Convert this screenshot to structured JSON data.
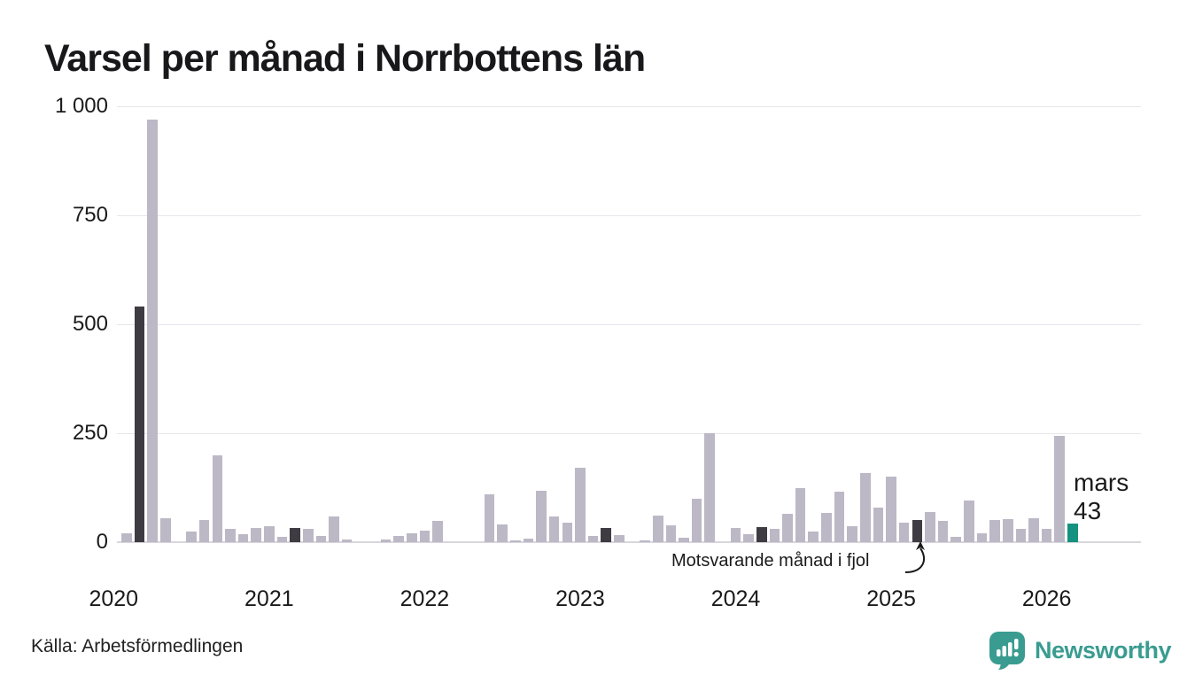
{
  "title": "Varsel per månad i Norrbottens län",
  "source": "Källa: Arbetsförmedlingen",
  "annotation": {
    "text": "Motsvarande månad i fjol"
  },
  "latest_label": {
    "month": "mars",
    "value": "43"
  },
  "brand": {
    "name": "Newsworthy"
  },
  "colors": {
    "bar_normal": "#bcb8c6",
    "bar_reference": "#3e3b42",
    "bar_latest": "#15917f",
    "gridline": "#e7e6ec",
    "baseline": "#d7d6dd",
    "brand_teal": "#3a9c90",
    "text": "#1a1a1a"
  },
  "chart_data": {
    "type": "bar",
    "title": "Varsel per månad i Norrbottens län",
    "xlabel": "",
    "ylabel": "",
    "ylim": [
      0,
      1000
    ],
    "grid": "horizontal",
    "yticks": [
      0,
      250,
      500,
      750,
      1000
    ],
    "ytick_labels": [
      "0",
      "250",
      "500",
      "750",
      "1 000"
    ],
    "year_labels": [
      "2020",
      "2021",
      "2022",
      "2023",
      "2024",
      "2025",
      "2026"
    ],
    "legend": "none",
    "note": "dark bars = same month (mars) in earlier years; teal bar = latest month (mars 2026, value 43)",
    "points": [
      {
        "month": "feb 2020",
        "value": 20,
        "kind": "normal"
      },
      {
        "month": "mar 2020",
        "value": 540,
        "kind": "reference"
      },
      {
        "month": "apr 2020",
        "value": 970,
        "kind": "normal"
      },
      {
        "month": "maj 2020",
        "value": 55,
        "kind": "normal"
      },
      {
        "month": "jun 2020",
        "value": 0,
        "kind": "normal"
      },
      {
        "month": "jul 2020",
        "value": 25,
        "kind": "normal"
      },
      {
        "month": "aug 2020",
        "value": 50,
        "kind": "normal"
      },
      {
        "month": "sep 2020",
        "value": 200,
        "kind": "normal"
      },
      {
        "month": "okt 2020",
        "value": 30,
        "kind": "normal"
      },
      {
        "month": "nov 2020",
        "value": 18,
        "kind": "normal"
      },
      {
        "month": "dec 2020",
        "value": 33,
        "kind": "normal"
      },
      {
        "month": "jan 2021",
        "value": 37,
        "kind": "normal"
      },
      {
        "month": "feb 2021",
        "value": 12,
        "kind": "normal"
      },
      {
        "month": "mar 2021",
        "value": 33,
        "kind": "reference"
      },
      {
        "month": "apr 2021",
        "value": 30,
        "kind": "normal"
      },
      {
        "month": "maj 2021",
        "value": 15,
        "kind": "normal"
      },
      {
        "month": "jun 2021",
        "value": 58,
        "kind": "normal"
      },
      {
        "month": "jul 2021",
        "value": 6,
        "kind": "normal"
      },
      {
        "month": "aug 2021",
        "value": 0,
        "kind": "normal"
      },
      {
        "month": "sep 2021",
        "value": 0,
        "kind": "normal"
      },
      {
        "month": "okt 2021",
        "value": 7,
        "kind": "normal"
      },
      {
        "month": "nov 2021",
        "value": 14,
        "kind": "normal"
      },
      {
        "month": "dec 2021",
        "value": 21,
        "kind": "normal"
      },
      {
        "month": "jan 2022",
        "value": 27,
        "kind": "normal"
      },
      {
        "month": "feb 2022",
        "value": 48,
        "kind": "normal"
      },
      {
        "month": "mar 2022",
        "value": 0,
        "kind": "reference"
      },
      {
        "month": "apr 2022",
        "value": 0,
        "kind": "normal"
      },
      {
        "month": "maj 2022",
        "value": 0,
        "kind": "normal"
      },
      {
        "month": "jun 2022",
        "value": 110,
        "kind": "normal"
      },
      {
        "month": "jul 2022",
        "value": 40,
        "kind": "normal"
      },
      {
        "month": "aug 2022",
        "value": 5,
        "kind": "normal"
      },
      {
        "month": "sep 2022",
        "value": 8,
        "kind": "normal"
      },
      {
        "month": "okt 2022",
        "value": 118,
        "kind": "normal"
      },
      {
        "month": "nov 2022",
        "value": 58,
        "kind": "normal"
      },
      {
        "month": "dec 2022",
        "value": 45,
        "kind": "normal"
      },
      {
        "month": "jan 2023",
        "value": 170,
        "kind": "normal"
      },
      {
        "month": "feb 2023",
        "value": 15,
        "kind": "normal"
      },
      {
        "month": "mar 2023",
        "value": 33,
        "kind": "reference"
      },
      {
        "month": "apr 2023",
        "value": 16,
        "kind": "normal"
      },
      {
        "month": "maj 2023",
        "value": 0,
        "kind": "normal"
      },
      {
        "month": "jun 2023",
        "value": 4,
        "kind": "normal"
      },
      {
        "month": "jul 2023",
        "value": 60,
        "kind": "normal"
      },
      {
        "month": "aug 2023",
        "value": 38,
        "kind": "normal"
      },
      {
        "month": "sep 2023",
        "value": 11,
        "kind": "normal"
      },
      {
        "month": "okt 2023",
        "value": 100,
        "kind": "normal"
      },
      {
        "month": "nov 2023",
        "value": 250,
        "kind": "normal"
      },
      {
        "month": "dec 2023",
        "value": 0,
        "kind": "normal"
      },
      {
        "month": "jan 2024",
        "value": 33,
        "kind": "normal"
      },
      {
        "month": "feb 2024",
        "value": 19,
        "kind": "normal"
      },
      {
        "month": "mar 2024",
        "value": 35,
        "kind": "reference"
      },
      {
        "month": "apr 2024",
        "value": 30,
        "kind": "normal"
      },
      {
        "month": "maj 2024",
        "value": 65,
        "kind": "normal"
      },
      {
        "month": "jun 2024",
        "value": 125,
        "kind": "normal"
      },
      {
        "month": "jul 2024",
        "value": 25,
        "kind": "normal"
      },
      {
        "month": "aug 2024",
        "value": 67,
        "kind": "normal"
      },
      {
        "month": "sep 2024",
        "value": 115,
        "kind": "normal"
      },
      {
        "month": "okt 2024",
        "value": 37,
        "kind": "normal"
      },
      {
        "month": "nov 2024",
        "value": 158,
        "kind": "normal"
      },
      {
        "month": "dec 2024",
        "value": 80,
        "kind": "normal"
      },
      {
        "month": "jan 2025",
        "value": 150,
        "kind": "normal"
      },
      {
        "month": "feb 2025",
        "value": 45,
        "kind": "normal"
      },
      {
        "month": "mar 2025",
        "value": 50,
        "kind": "reference"
      },
      {
        "month": "apr 2025",
        "value": 69,
        "kind": "normal"
      },
      {
        "month": "maj 2025",
        "value": 48,
        "kind": "normal"
      },
      {
        "month": "jun 2025",
        "value": 12,
        "kind": "normal"
      },
      {
        "month": "jul 2025",
        "value": 95,
        "kind": "normal"
      },
      {
        "month": "aug 2025",
        "value": 21,
        "kind": "normal"
      },
      {
        "month": "sep 2025",
        "value": 50,
        "kind": "normal"
      },
      {
        "month": "okt 2025",
        "value": 52,
        "kind": "normal"
      },
      {
        "month": "nov 2025",
        "value": 30,
        "kind": "normal"
      },
      {
        "month": "dec 2025",
        "value": 55,
        "kind": "normal"
      },
      {
        "month": "jan 2026",
        "value": 31,
        "kind": "normal"
      },
      {
        "month": "feb 2026",
        "value": 243,
        "kind": "normal"
      },
      {
        "month": "mar 2026",
        "value": 43,
        "kind": "latest"
      }
    ]
  }
}
